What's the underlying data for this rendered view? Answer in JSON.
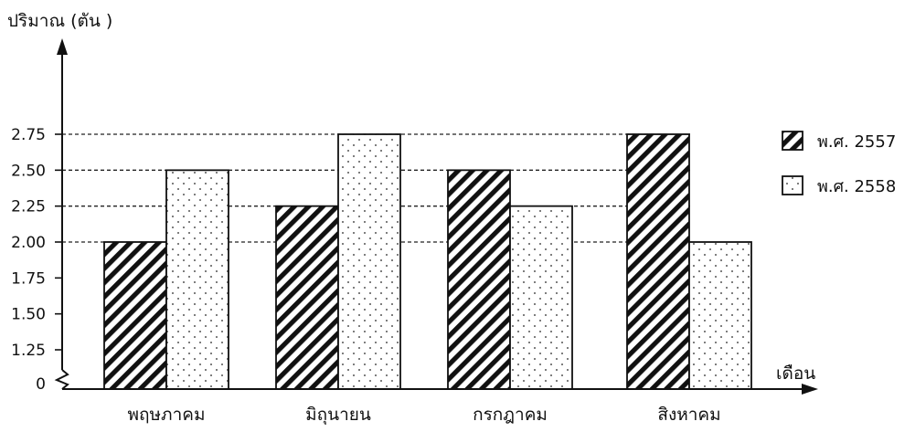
{
  "chart_data": {
    "type": "bar",
    "ylabel": "ปริมาณ (ตัน )",
    "xlabel": "เดือน",
    "categories": [
      "พฤษภาคม",
      "มิถุนายน",
      "กรกฎาคม",
      "สิงหาคม"
    ],
    "series": [
      {
        "name": "พ.ศ. 2557",
        "values": [
          2.0,
          2.25,
          2.5,
          2.75
        ],
        "pattern": "diagonal-stripes"
      },
      {
        "name": "พ.ศ. 2558",
        "values": [
          2.5,
          2.75,
          2.25,
          2.0
        ],
        "pattern": "dots"
      }
    ],
    "y_ticks": [
      "0",
      "1.25",
      "1.50",
      "1.75",
      "2.00",
      "2.25",
      "2.50",
      "2.75"
    ],
    "y_tick_values": [
      0,
      1.25,
      1.5,
      1.75,
      2.0,
      2.25,
      2.5,
      2.75
    ],
    "y_axis_break": true,
    "ylim": [
      0,
      2.75
    ],
    "guide_lines": [
      2.0,
      2.25,
      2.5,
      2.75
    ],
    "grid": false,
    "legend_position": "right",
    "colors": {
      "ink": "#111111",
      "background": "#ffffff"
    }
  }
}
